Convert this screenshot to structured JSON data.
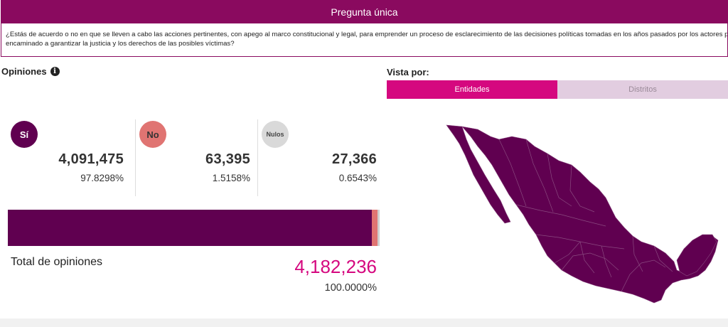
{
  "question": {
    "header": "Pregunta única",
    "text_line1": "¿Estás de acuerdo o no en que se lleven a cabo las acciones pertinentes, con apego al marco constitucional y legal, para emprender un proceso de esclarecimiento de las decisiones políticas tomadas en los años pasados por los actores políti",
    "text_line2": "encaminado a garantizar la justicia y los derechos de las posibles víctimas?"
  },
  "opinions": {
    "title": "Opiniones",
    "info_icon": "info-icon",
    "options": [
      {
        "label": "Sí",
        "count": "4,091,475",
        "percent": "97.8298%",
        "fraction": 0.978298,
        "color": "#600050"
      },
      {
        "label": "No",
        "count": "63,395",
        "percent": "1.5158%",
        "fraction": 0.015158,
        "color": "#e07472"
      },
      {
        "label": "Nulos",
        "count": "27,366",
        "percent": "0.6543%",
        "fraction": 0.006543,
        "color": "#cfcfcf"
      }
    ],
    "total_label": "Total de opiniones",
    "total_value": "4,182,236",
    "total_percent": "100.0000%"
  },
  "view": {
    "title": "Vista por:",
    "tabs": [
      {
        "label": "Entidades",
        "active": true
      },
      {
        "label": "Distritos",
        "active": false
      }
    ]
  },
  "map": {
    "icon": "mexico-map",
    "fill_color": "#600050"
  },
  "colors": {
    "brand": "#8a0a5f",
    "accent": "#d5087f",
    "si": "#600050",
    "no": "#e07472",
    "nulos": "#cfcfcf"
  }
}
